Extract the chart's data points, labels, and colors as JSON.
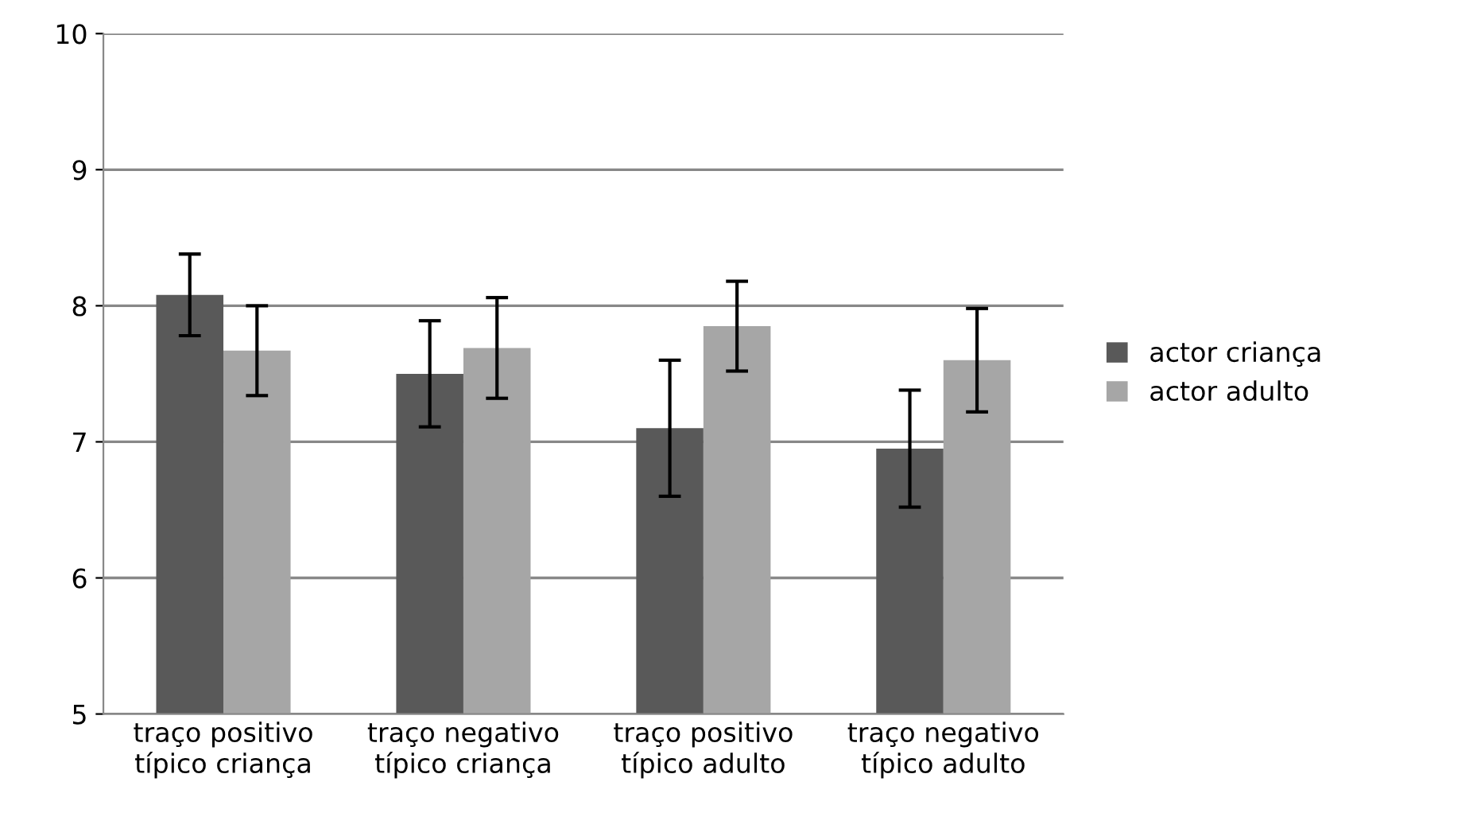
{
  "chart_data": {
    "type": "bar",
    "categories": [
      "traço positivo\ntípico criança",
      "traço negativo\ntípico criança",
      "traço positivo\ntípico adulto",
      "traço negativo\ntípico adulto"
    ],
    "series": [
      {
        "name": "actor criança",
        "color": "#595959",
        "values": [
          8.08,
          7.5,
          7.1,
          6.95
        ],
        "errors": [
          0.3,
          0.39,
          0.5,
          0.43
        ]
      },
      {
        "name": "actor adulto",
        "color": "#a6a6a6",
        "values": [
          7.67,
          7.69,
          7.85,
          7.6
        ],
        "errors": [
          0.33,
          0.37,
          0.33,
          0.38
        ]
      }
    ],
    "ylim": [
      5,
      10
    ],
    "yticks": [
      5,
      6,
      7,
      8,
      9,
      10
    ],
    "grid": "y",
    "legend": "right"
  }
}
